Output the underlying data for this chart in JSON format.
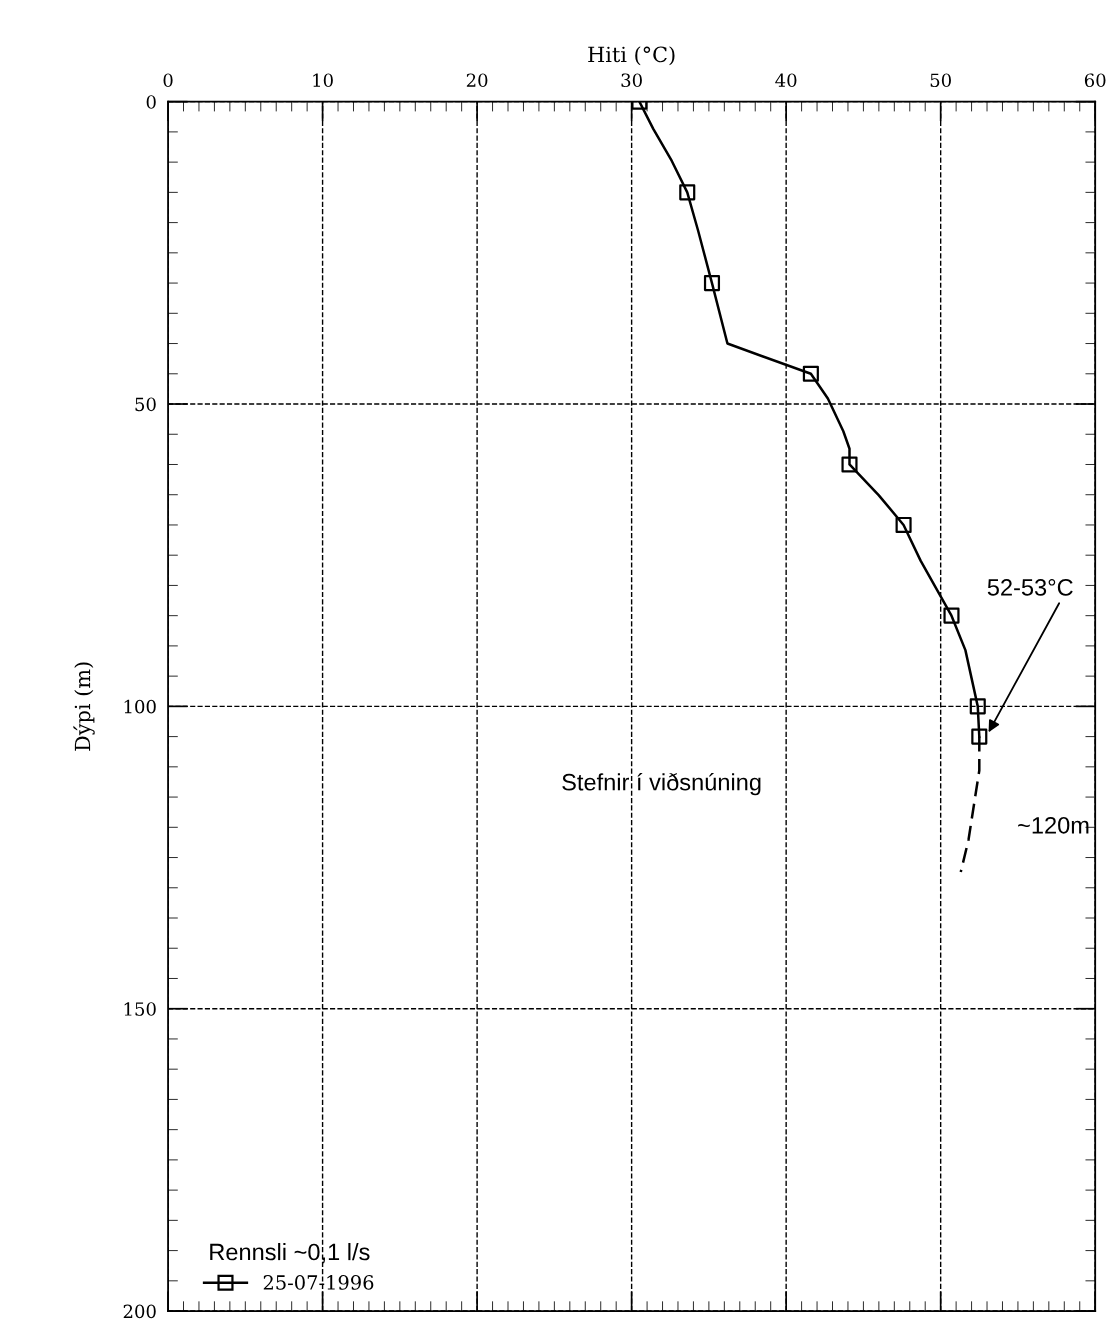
{
  "chart_data": {
    "type": "line",
    "xlabel": "Hiti (°C)",
    "ylabel": "Dýpi (m)",
    "legend_title": "Rennsli ~0,1 l/s",
    "xlim": [
      0,
      60
    ],
    "xticks": [
      0,
      10,
      20,
      30,
      40,
      50,
      60
    ],
    "ylim": [
      200,
      0
    ],
    "yticks": [
      0,
      50,
      100,
      150,
      200
    ],
    "grid": true,
    "legend": "bottom left",
    "series": [
      {
        "color": "#000000",
        "line_style": "solid",
        "x": [
          30.5,
          31.4,
          32.6,
          33.6,
          34.3,
          35.2,
          36.2,
          41.6,
          42.7,
          43.7,
          44.1,
          44.1,
          46.0,
          47.6,
          48.7,
          50.7,
          51.6,
          52.4,
          52.5
        ],
        "values": [
          0,
          4.5,
          9.8,
          15,
          21.3,
          30,
          40,
          45,
          49.1,
          54.5,
          57.4,
          60,
          65.1,
          70,
          75.9,
          85,
          90.7,
          100,
          105
        ]
      },
      {
        "type": "scatter",
        "name": "25-07-1996",
        "color": "#000000",
        "marker": "square",
        "x": [
          30.5,
          33.6,
          35.2,
          41.6,
          44.1,
          47.6,
          50.7,
          52.4,
          52.5
        ],
        "values": [
          0,
          15,
          30,
          45,
          60,
          70,
          85,
          100,
          105
        ]
      },
      {
        "color": "#000000",
        "line_style": "dashed",
        "x": [
          52.5,
          52.5,
          52.2,
          51.8,
          51.3
        ],
        "values": [
          105,
          110.6,
          115.5,
          122.1,
          127.4
        ]
      }
    ],
    "annotations": [
      {
        "text": "52-53°C",
        "x": 53.1,
        "y": 104.3
      },
      {
        "text": "~120m",
        "x": 51.8,
        "y": 120
      },
      "Stefnir í viðsnúning"
    ]
  }
}
